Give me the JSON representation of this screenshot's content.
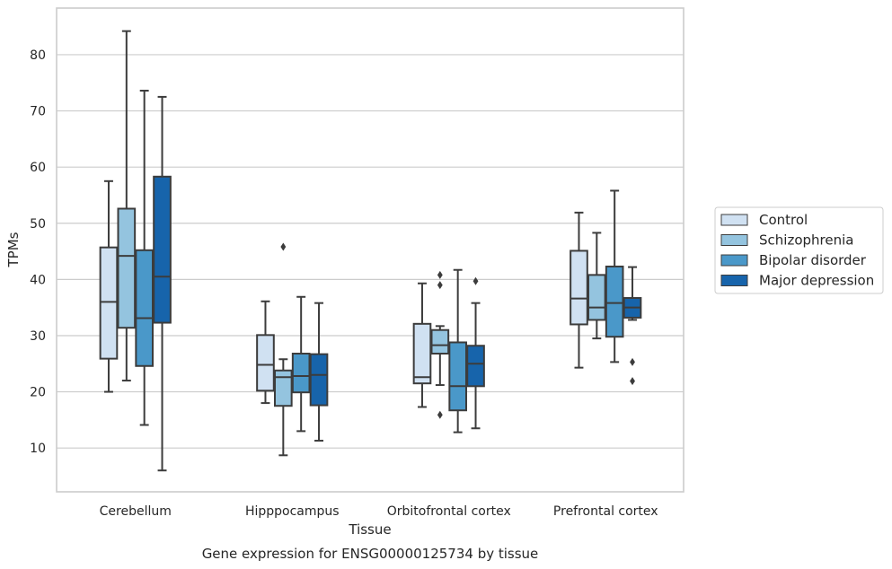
{
  "chart_data": {
    "type": "box",
    "title": "",
    "xlabel": "Tissue",
    "ylabel": "TPMs",
    "caption": "Gene expression for ENSG00000125734 by tissue",
    "ylim": [
      2.2,
      88.3
    ],
    "yticks": [
      10,
      20,
      30,
      40,
      50,
      60,
      70,
      80
    ],
    "grid": true,
    "legend_position": "right",
    "categories": [
      "Cerebellum",
      "Hipppocampus",
      "Orbitofrontal cortex",
      "Prefrontal cortex"
    ],
    "series": [
      {
        "name": "Control",
        "color": "#d0e1f2",
        "boxes": [
          {
            "whislo": 20.0,
            "q1": 25.9,
            "med": 36.0,
            "q3": 45.7,
            "whishi": 57.5,
            "fliers": []
          },
          {
            "whislo": 18.0,
            "q1": 20.2,
            "med": 24.8,
            "q3": 30.1,
            "whishi": 36.1,
            "fliers": []
          },
          {
            "whislo": 17.3,
            "q1": 21.5,
            "med": 22.6,
            "q3": 32.1,
            "whishi": 39.3,
            "fliers": []
          },
          {
            "whislo": 24.3,
            "q1": 32.0,
            "med": 36.6,
            "q3": 45.1,
            "whishi": 51.9,
            "fliers": []
          }
        ]
      },
      {
        "name": "Schizophrenia",
        "color": "#94c4df",
        "boxes": [
          {
            "whislo": 22.0,
            "q1": 31.4,
            "med": 44.2,
            "q3": 52.6,
            "whishi": 84.2,
            "fliers": []
          },
          {
            "whislo": 8.7,
            "q1": 17.5,
            "med": 22.6,
            "q3": 23.8,
            "whishi": 25.8,
            "fliers": [
              45.8
            ]
          },
          {
            "whislo": 21.2,
            "q1": 26.8,
            "med": 28.3,
            "q3": 31.0,
            "whishi": 31.7,
            "fliers": [
              40.8,
              39.0,
              15.9
            ]
          },
          {
            "whislo": 29.5,
            "q1": 32.8,
            "med": 35.0,
            "q3": 40.8,
            "whishi": 48.3,
            "fliers": []
          }
        ]
      },
      {
        "name": "Bipolar disorder",
        "color": "#4a98c9",
        "boxes": [
          {
            "whislo": 14.1,
            "q1": 24.6,
            "med": 33.1,
            "q3": 45.2,
            "whishi": 73.6,
            "fliers": []
          },
          {
            "whislo": 13.0,
            "q1": 19.9,
            "med": 22.8,
            "q3": 26.8,
            "whishi": 36.9,
            "fliers": []
          },
          {
            "whislo": 12.8,
            "q1": 16.7,
            "med": 21.0,
            "q3": 28.8,
            "whishi": 41.7,
            "fliers": []
          },
          {
            "whislo": 25.3,
            "q1": 29.8,
            "med": 35.8,
            "q3": 42.3,
            "whishi": 55.8,
            "fliers": []
          }
        ]
      },
      {
        "name": "Major depression",
        "color": "#1764ab",
        "boxes": [
          {
            "whislo": 6.0,
            "q1": 32.3,
            "med": 40.5,
            "q3": 58.3,
            "whishi": 72.5,
            "fliers": []
          },
          {
            "whislo": 11.3,
            "q1": 17.6,
            "med": 23.0,
            "q3": 26.7,
            "whishi": 35.8,
            "fliers": []
          },
          {
            "whislo": 13.5,
            "q1": 21.0,
            "med": 25.0,
            "q3": 28.2,
            "whishi": 35.8,
            "fliers": [
              39.7
            ]
          },
          {
            "whislo": 32.8,
            "q1": 33.2,
            "med": 35.0,
            "q3": 36.7,
            "whishi": 42.2,
            "fliers": [
              25.3,
              21.9
            ]
          }
        ]
      }
    ]
  }
}
